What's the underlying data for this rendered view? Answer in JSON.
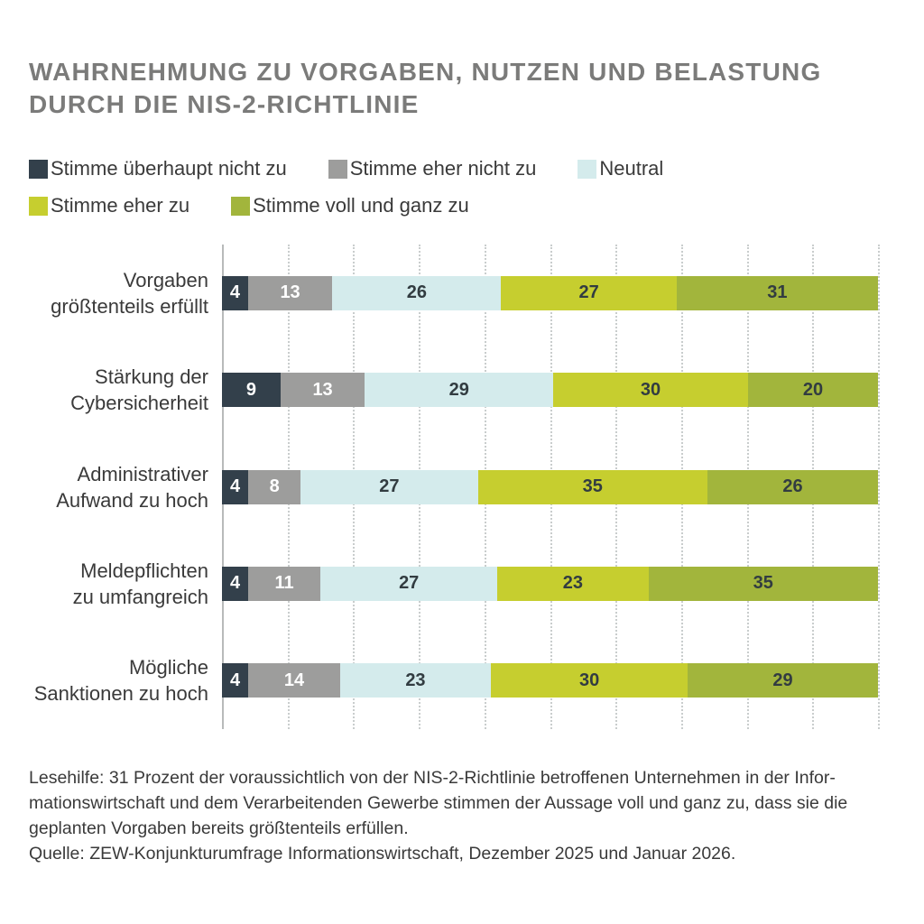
{
  "title": {
    "line1": "WAHRNEHMUNG ZU VORGABEN, NUTZEN UND BELASTUNG",
    "line2": "DURCH DIE NIS-2-RICHTLINIE"
  },
  "chart_data": {
    "type": "bar",
    "orientation": "horizontal",
    "stacked": true,
    "unit": "percent",
    "xlim": [
      0,
      100
    ],
    "gridlines": "dotted vertical every 10 percent",
    "legend_position": "top",
    "categories": [
      "Vorgaben größtenteils erfüllt",
      "Stärkung der Cybersicherheit",
      "Administrativer Aufwand zu hoch",
      "Meldepflichten zu umfangreich",
      "Mögliche Sanktionen zu hoch"
    ],
    "category_lines": [
      [
        "Vorgaben",
        "größtenteils erfüllt"
      ],
      [
        "Stärkung der",
        "Cybersicherheit"
      ],
      [
        "Administrativer",
        "Aufwand zu hoch"
      ],
      [
        "Meldepflichten",
        "zu umfangreich"
      ],
      [
        "Mögliche",
        "Sanktionen zu hoch"
      ]
    ],
    "series": [
      {
        "name": "Stimme überhaupt nicht zu",
        "color": "#33404b",
        "text_color": "#ffffff",
        "values": [
          4,
          9,
          4,
          4,
          4
        ]
      },
      {
        "name": "Stimme eher nicht zu",
        "color": "#9d9d9c",
        "text_color": "#ffffff",
        "values": [
          13,
          13,
          8,
          11,
          14
        ]
      },
      {
        "name": "Neutral",
        "color": "#d4ebec",
        "text_color": "#323c41",
        "values": [
          26,
          29,
          27,
          27,
          23
        ]
      },
      {
        "name": "Stimme eher zu",
        "color": "#c6ce2f",
        "text_color": "#323c41",
        "values": [
          27,
          30,
          35,
          23,
          30
        ]
      },
      {
        "name": "Stimme voll und ganz zu",
        "color": "#a2b53c",
        "text_color": "#323c41",
        "values": [
          31,
          20,
          26,
          35,
          29
        ]
      }
    ]
  },
  "footnote": {
    "lesehilfe_lines": [
      "Lesehilfe: 31 Prozent der voraussichtlich von der NIS-2-Richtlinie betroffenen Unternehmen in der Infor-",
      "mationswirtschaft und dem Verarbeitenden Gewerbe stimmen der Aussage voll und ganz zu, dass sie die",
      "geplanten Vorgaben bereits größtenteils erfüllen."
    ],
    "quelle": "Quelle: ZEW-Konjunkturumfrage Informationswirtschaft, Dezember 2025 und Januar 2026."
  },
  "colors": {
    "title_gray": "#7b7b7a",
    "body_text": "#3a3a3a",
    "axis_line": "#b8baba",
    "gridline": "#c9cdcd"
  }
}
